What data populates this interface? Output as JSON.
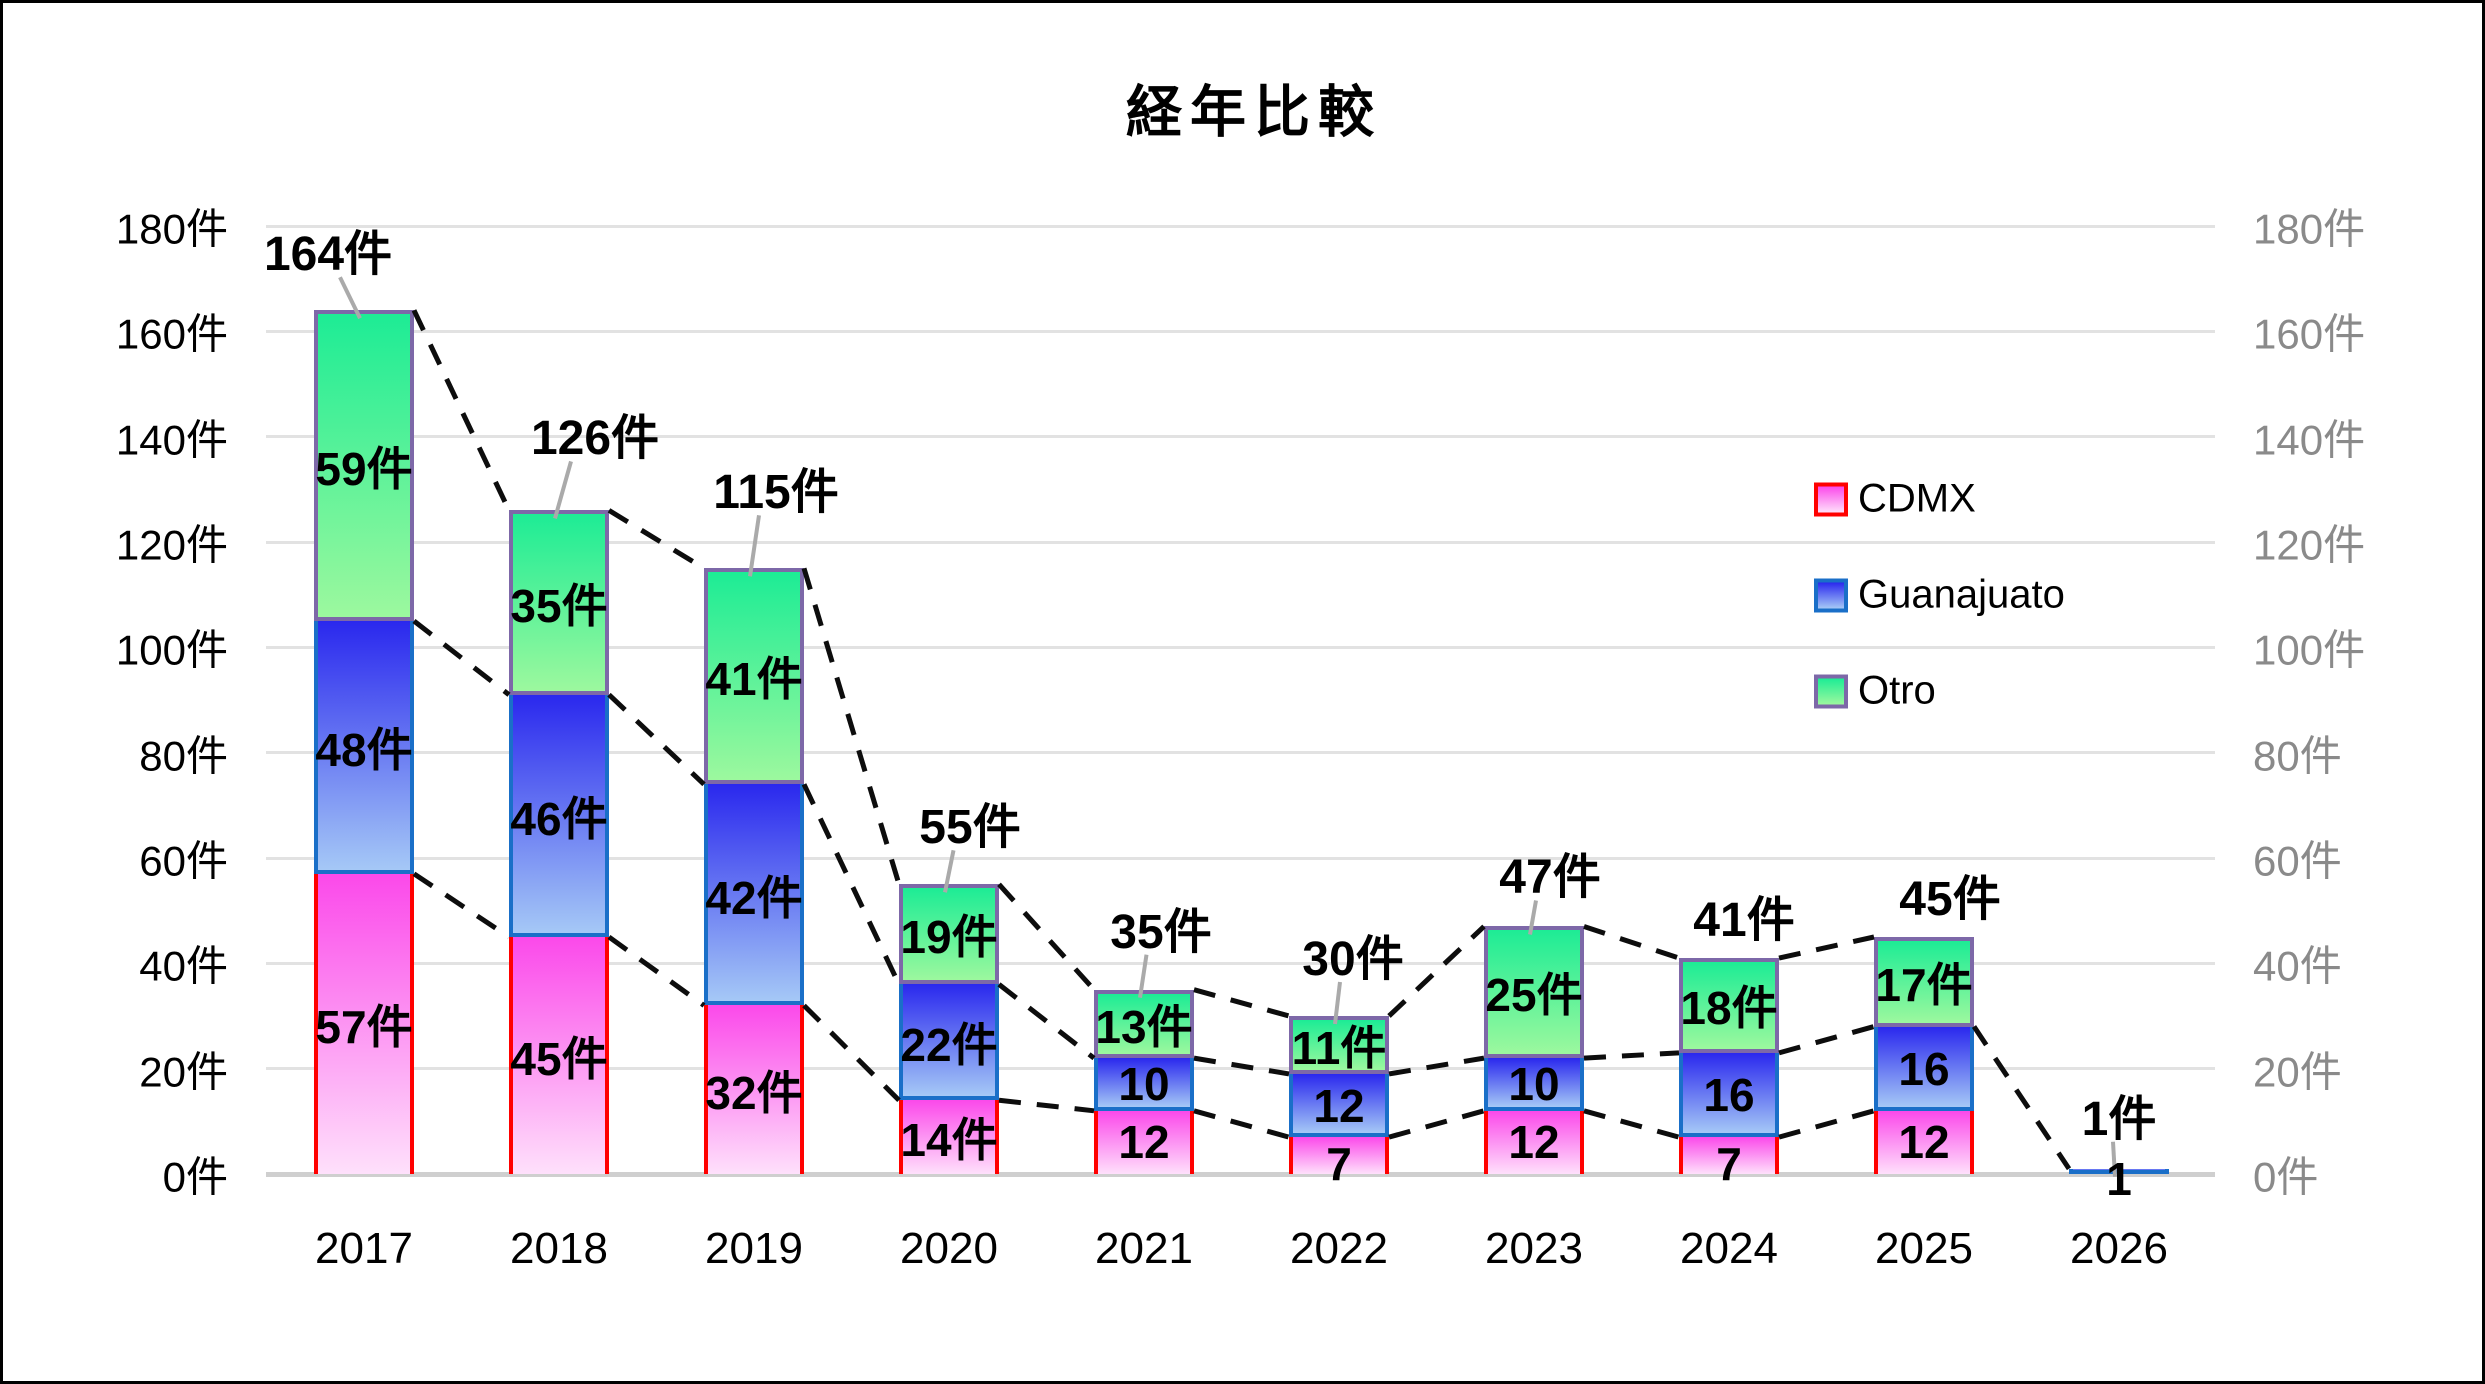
{
  "title": "経年比較",
  "chart_data": {
    "type": "bar",
    "stacked": true,
    "title": "経年比較",
    "categories": [
      "2017",
      "2018",
      "2019",
      "2020",
      "2021",
      "2022",
      "2023",
      "2024",
      "2025",
      "2026"
    ],
    "series": [
      {
        "name": "CDMX",
        "values": [
          57,
          45,
          32,
          14,
          12,
          7,
          12,
          7,
          12,
          0
        ],
        "labels": [
          "57件",
          "45件",
          "32件",
          "14件",
          "12",
          "7",
          "12",
          "7",
          "12",
          null
        ],
        "color_top": "#fb49ea",
        "color_bottom": "#fee0fb",
        "border_color": "#ff0000"
      },
      {
        "name": "Guanajuato",
        "values": [
          48,
          46,
          42,
          22,
          10,
          12,
          10,
          16,
          16,
          1
        ],
        "labels": [
          "48件",
          "46件",
          "42件",
          "22件",
          "10",
          "12",
          "10",
          "16",
          "16",
          "1"
        ],
        "color_top": "#2a28ee",
        "color_bottom": "#a5c8f6",
        "border_color": "#1a6fc8"
      },
      {
        "name": "Otro",
        "values": [
          59,
          35,
          41,
          19,
          13,
          11,
          25,
          18,
          17,
          0
        ],
        "labels": [
          "59件",
          "35件",
          "41件",
          "19件",
          "13件",
          "11件",
          "25件",
          "18件",
          "17件",
          null
        ],
        "color_top": "#1dec95",
        "color_bottom": "#9cf89e",
        "border_color": "#7d68a8"
      }
    ],
    "totals": {
      "values": [
        164,
        126,
        115,
        55,
        35,
        30,
        47,
        41,
        45,
        1
      ],
      "labels": [
        "164件",
        "126件",
        "115件",
        "55件",
        "35件",
        "30件",
        "47件",
        "41件",
        "45件",
        "1件"
      ],
      "leader": [
        true,
        true,
        true,
        true,
        true,
        true,
        true,
        false,
        false,
        true
      ],
      "dx": [
        -36,
        36,
        22,
        21,
        17,
        14,
        16,
        15,
        26,
        0
      ],
      "dy": [
        -61,
        -77,
        -81,
        -62,
        -63,
        -62,
        -54,
        -43,
        -43,
        -55
      ]
    },
    "y_axis": {
      "min": 0,
      "max": 180,
      "step": 20,
      "unit_suffix": "件",
      "left_labels": [
        "180件",
        "160件",
        "140件",
        "120件",
        "100件",
        "80件",
        "60件",
        "40件",
        "20件",
        "0件"
      ],
      "right_labels": [
        "180件",
        "160件",
        "140件",
        "120件",
        "100件",
        "80件",
        "60件",
        "40件",
        "20件",
        "0件"
      ]
    },
    "series_lines": {
      "style": "dashed",
      "color": "#0d0d0d",
      "last_gap_series": [
        "Guanajuato"
      ]
    },
    "legend": {
      "position": "right-center",
      "entries": [
        "CDMX",
        "Guanajuato",
        "Otro"
      ]
    },
    "grid": true
  },
  "colors": {
    "gridline": "#e2e2e2",
    "baseline": "#cfcfcf",
    "leader_line": "#aaaaaa",
    "left_axis_text": "#000000",
    "right_axis_text": "#8a8a8a",
    "dashed_line": "#0d0d0d"
  }
}
